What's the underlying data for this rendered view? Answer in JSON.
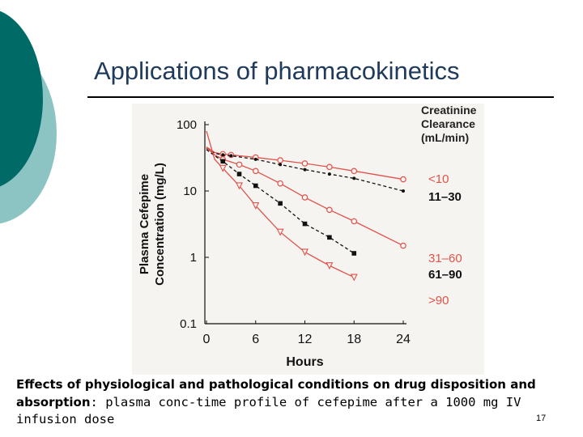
{
  "slide": {
    "title": "Applications of pharmacokinetics",
    "caption_bold": "Effects of physiological and pathological conditions on drug disposition and absorption",
    "caption_rest": ": plasma conc-time profile of cefepime after a 1000 mg IV infusion dose",
    "page_number": "17",
    "colors": {
      "deco_dark": "#006b66",
      "deco_light": "#8cc4c4",
      "title": "#1f3a5a"
    }
  },
  "chart_data": {
    "type": "line",
    "title": "",
    "xlabel": "Hours",
    "ylabel": "Plasma Cefepime Concentration (mg/L)",
    "yscale": "log",
    "xlim": [
      0,
      24
    ],
    "ylim": [
      0.1,
      100
    ],
    "x_ticks": [
      "0",
      "6",
      "12",
      "18",
      "24"
    ],
    "y_ticks": [
      "0.1",
      "1",
      "10",
      "100"
    ],
    "legend_title": "Creatinine Clearance (mL/min)",
    "legend_placement": "right",
    "colors": {
      "red": "#e0524a",
      "black": "#111111"
    },
    "series": [
      {
        "name": "<10",
        "color": "#e0524a",
        "marker": "open-circle",
        "dash": false,
        "x": [
          0,
          1,
          2,
          3,
          6,
          9,
          12,
          15,
          18,
          24
        ],
        "y": [
          46,
          38,
          36,
          35,
          32,
          29,
          26,
          23,
          20,
          15
        ]
      },
      {
        "name": "11–30",
        "color": "#111111",
        "marker": "small-dot",
        "dash": true,
        "x": [
          0,
          1,
          2,
          3,
          6,
          9,
          12,
          15,
          18,
          24
        ],
        "y": [
          44,
          37,
          35,
          34,
          30,
          25,
          21,
          18,
          15.5,
          10
        ]
      },
      {
        "name": "31–60",
        "color": "#e0524a",
        "marker": "open-circle",
        "dash": false,
        "x": [
          0,
          1,
          2,
          4,
          6,
          9,
          12,
          15,
          18,
          24
        ],
        "y": [
          45,
          35,
          30,
          25,
          20,
          13,
          8,
          5.2,
          3.5,
          1.5
        ]
      },
      {
        "name": "61–90",
        "color": "#111111",
        "marker": "filled-square",
        "dash": true,
        "x": [
          0,
          1,
          2,
          4,
          6,
          9,
          12,
          15,
          18
        ],
        "y": [
          42,
          34,
          28,
          18,
          12,
          6.5,
          3.2,
          2.0,
          1.15
        ]
      },
      {
        "name": ">90",
        "color": "#e0524a",
        "marker": "open-triangle",
        "dash": false,
        "x": [
          0,
          1,
          2,
          4,
          6,
          9,
          12,
          15,
          18
        ],
        "y": [
          80,
          30,
          22,
          12,
          6.0,
          2.4,
          1.2,
          0.75,
          0.5
        ]
      }
    ]
  }
}
